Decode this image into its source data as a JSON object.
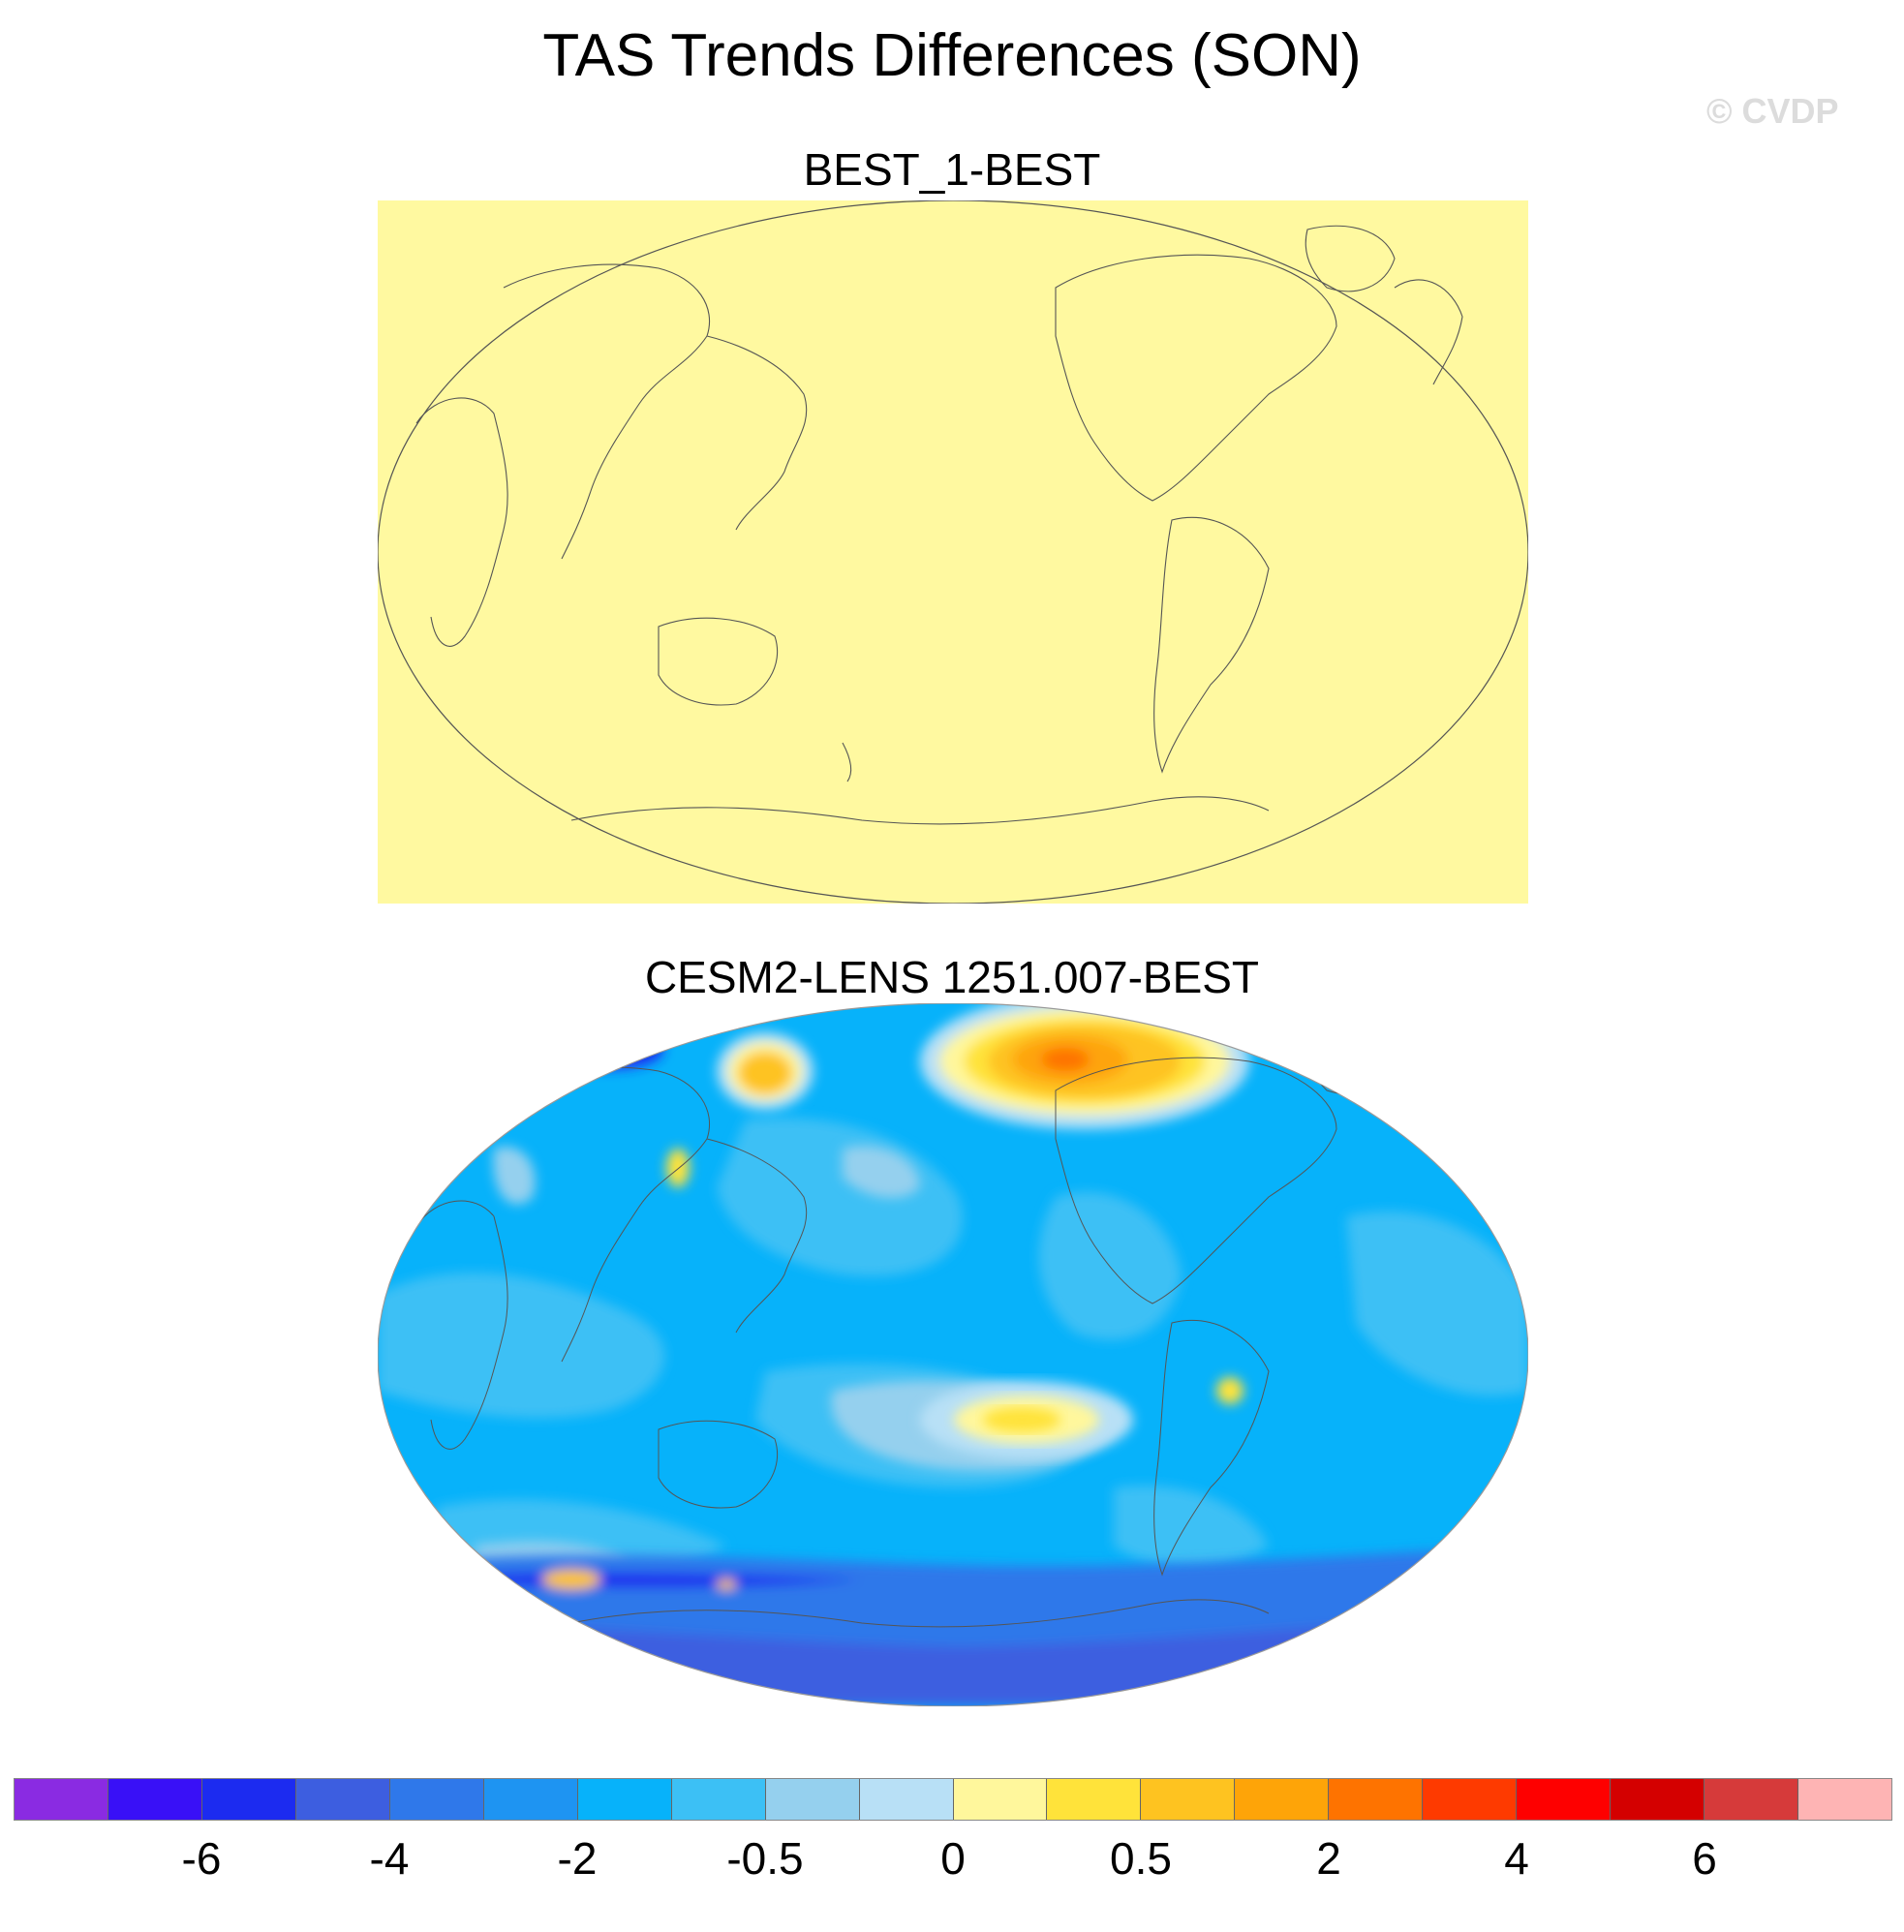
{
  "title": "TAS Trends Differences (SON)",
  "watermark": "© CVDP",
  "panels": [
    {
      "title": "BEST_1-BEST"
    },
    {
      "title": "CESM2-LENS 1251.007-BEST"
    }
  ],
  "colorbar": {
    "colors": [
      "#8a2be2",
      "#3910f7",
      "#1c2bf0",
      "#3d5ee0",
      "#2f78ea",
      "#1e94f2",
      "#07b2fa",
      "#3cc0f5",
      "#95d0ee",
      "#b8e0f6",
      "#fff79c",
      "#ffe33a",
      "#fec320",
      "#fea408",
      "#fe7300",
      "#fe3a00",
      "#fe0000",
      "#d40000",
      "#d63a3a",
      "#feb4b4"
    ],
    "tick_labels": [
      "-6",
      "-4",
      "-2",
      "-0.5",
      "0",
      "0.5",
      "2",
      "4",
      "6"
    ],
    "tick_boundaries": [
      2,
      4,
      6,
      8,
      10,
      12,
      14,
      16,
      18
    ]
  },
  "colors": {
    "panel1_fill": "#fff9a0",
    "coastline": "#555555"
  }
}
